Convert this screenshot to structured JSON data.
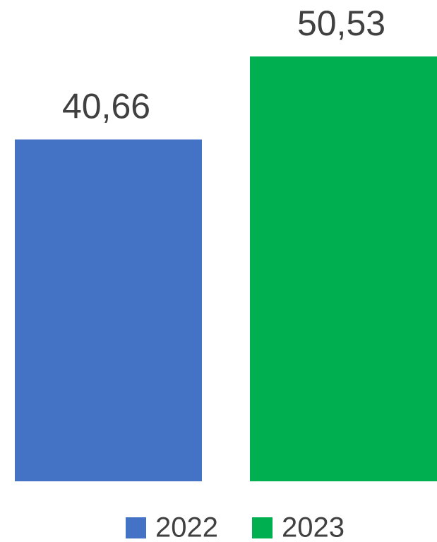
{
  "chart_data": {
    "type": "bar",
    "categories": [
      null
    ],
    "series": [
      {
        "name": "2022",
        "color": "#4472c4",
        "values": [
          40.66
        ],
        "value_labels": [
          "40,66"
        ]
      },
      {
        "name": "2023",
        "color": "#00b050",
        "values": [
          50.53
        ],
        "value_labels": [
          "50,53"
        ]
      }
    ],
    "legend": "bottom"
  }
}
